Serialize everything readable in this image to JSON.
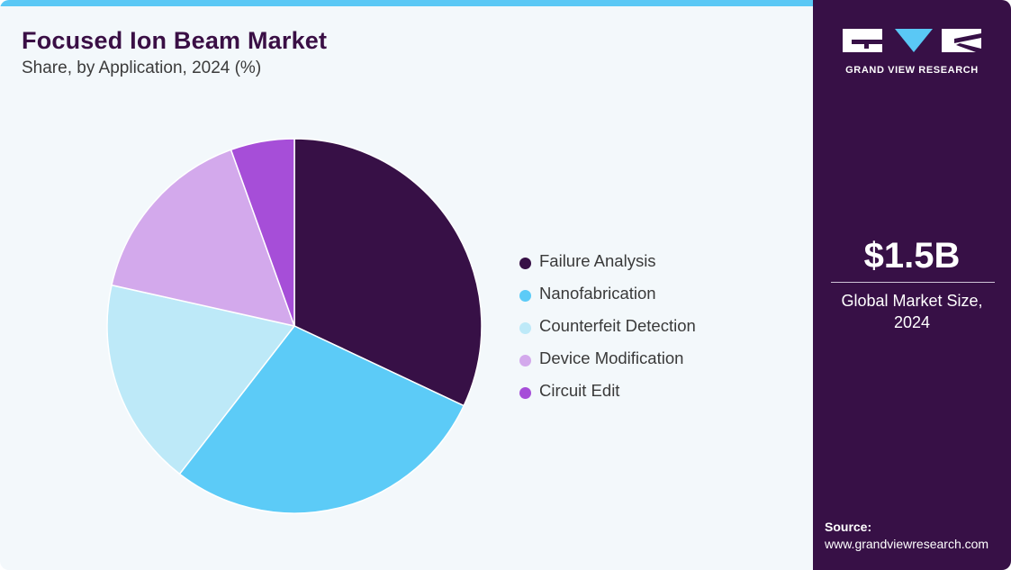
{
  "header": {
    "title": "Focused Ion Beam Market",
    "subtitle": "Share, by Application, 2024 (%)"
  },
  "chart_data": {
    "type": "pie",
    "title": "Focused Ion Beam Market",
    "subtitle": "Share, by Application, 2024 (%)",
    "legend_position": "right",
    "slices": [
      {
        "label": "Failure Analysis",
        "value": 32.0,
        "color": "#371046"
      },
      {
        "label": "Nanofabrication",
        "value": 28.5,
        "color": "#5ccbf7"
      },
      {
        "label": "Counterfeit Detection",
        "value": 18.0,
        "color": "#bde9f8"
      },
      {
        "label": "Device Modification",
        "value": 16.0,
        "color": "#d3a9ec"
      },
      {
        "label": "Circuit Edit",
        "value": 5.5,
        "color": "#a64ed8"
      }
    ]
  },
  "sidebar": {
    "logo_text": "GRAND VIEW RESEARCH",
    "market_value": "$1.5B",
    "market_caption_line1": "Global Market Size,",
    "market_caption_line2": "2024",
    "source_label": "Source:",
    "source_url": "www.grandviewresearch.com"
  },
  "colors": {
    "accent_bar": "#5ac8f5",
    "sidebar_bg": "#371046",
    "title": "#3a0f45"
  }
}
